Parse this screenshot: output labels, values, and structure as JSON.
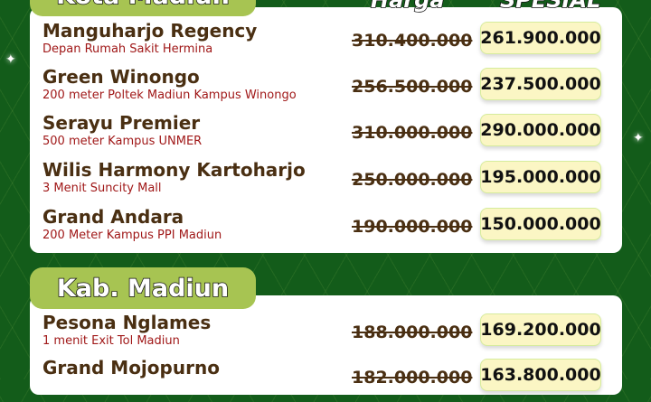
{
  "headers": {
    "old": "Harga",
    "new": "SPESIAL"
  },
  "sections": [
    {
      "title": "Kota Madiun",
      "items": [
        {
          "name": "Manguharjo Regency",
          "location": "Depan Rumah Sakit Hermina",
          "old_price": "310.400.000",
          "new_price": "261.900.000"
        },
        {
          "name": "Green Winongo",
          "location": "200 meter Poltek Madiun Kampus Winongo",
          "old_price": "256.500.000",
          "new_price": "237.500.000"
        },
        {
          "name": "Serayu Premier",
          "location": "500 meter Kampus UNMER",
          "old_price": "310.000.000",
          "new_price": "290.000.000"
        },
        {
          "name": "Wilis Harmony Kartoharjo",
          "location": "3 Menit Suncity Mall",
          "old_price": "250.000.000",
          "new_price": "195.000.000"
        },
        {
          "name": "Grand Andara",
          "location": "200 Meter Kampus PPI Madiun",
          "old_price": "190.000.000",
          "new_price": "150.000.000"
        }
      ]
    },
    {
      "title": "Kab. Madiun",
      "items": [
        {
          "name": "Pesona Nglames",
          "location": "1 menit Exit Tol Madiun",
          "old_price": "188.000.000",
          "new_price": "169.200.000"
        },
        {
          "name": "Grand Mojopurno",
          "location": "",
          "old_price": "182.000.000",
          "new_price": "163.800.000"
        }
      ]
    }
  ]
}
